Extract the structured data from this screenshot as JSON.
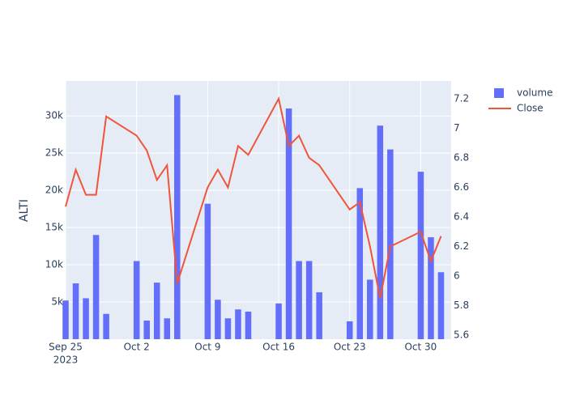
{
  "chart_data": {
    "type": "bar-line",
    "y_title": "ALTI",
    "x": [
      "2023-09-25",
      "2023-09-26",
      "2023-09-27",
      "2023-09-28",
      "2023-09-29",
      "2023-10-02",
      "2023-10-03",
      "2023-10-04",
      "2023-10-05",
      "2023-10-06",
      "2023-10-09",
      "2023-10-10",
      "2023-10-11",
      "2023-10-12",
      "2023-10-13",
      "2023-10-16",
      "2023-10-17",
      "2023-10-18",
      "2023-10-19",
      "2023-10-20",
      "2023-10-23",
      "2023-10-24",
      "2023-10-25",
      "2023-10-26",
      "2023-10-27",
      "2023-10-30",
      "2023-10-31",
      "2023-11-01"
    ],
    "series": [
      {
        "name": "volume",
        "type": "bar",
        "color": "#636efa",
        "values": [
          5200,
          7500,
          5500,
          14000,
          3400,
          10500,
          2500,
          7600,
          2800,
          32800,
          18200,
          5300,
          2800,
          4000,
          3700,
          4800,
          31000,
          10500,
          10500,
          6300,
          2400,
          20300,
          8000,
          28700,
          25500,
          22500,
          13700,
          9000
        ]
      },
      {
        "name": "Close",
        "type": "line",
        "axis": "y2",
        "color": "#ef553b",
        "values": [
          6.47,
          6.72,
          6.55,
          6.55,
          7.08,
          6.95,
          6.85,
          6.65,
          6.75,
          5.95,
          6.6,
          6.72,
          6.6,
          6.88,
          6.82,
          7.2,
          6.88,
          6.95,
          6.8,
          6.75,
          6.45,
          6.5,
          6.2,
          5.85,
          6.2,
          6.3,
          6.1,
          6.27
        ]
      }
    ],
    "xlim": [
      "2023-09-25",
      "2023-11-02"
    ],
    "xticks": [
      {
        "value": "2023-09-25",
        "label": "Sep 25"
      },
      {
        "value": "2023-10-02",
        "label": "Oct 2"
      },
      {
        "value": "2023-10-09",
        "label": "Oct 9"
      },
      {
        "value": "2023-10-16",
        "label": "Oct 16"
      },
      {
        "value": "2023-10-23",
        "label": "Oct 23"
      },
      {
        "value": "2023-10-30",
        "label": "Oct 30"
      }
    ],
    "x_year_label": "2023",
    "ylim": [
      0,
      34700
    ],
    "yticks": [
      {
        "value": 5000,
        "label": "5k"
      },
      {
        "value": 10000,
        "label": "10k"
      },
      {
        "value": 15000,
        "label": "15k"
      },
      {
        "value": 20000,
        "label": "20k"
      },
      {
        "value": 25000,
        "label": "25k"
      },
      {
        "value": 30000,
        "label": "30k"
      }
    ],
    "y2lim": [
      5.573,
      7.32
    ],
    "y2ticks": [
      5.6,
      5.8,
      6,
      6.2,
      6.4,
      6.6,
      6.8,
      7,
      7.2
    ],
    "grid": true
  }
}
